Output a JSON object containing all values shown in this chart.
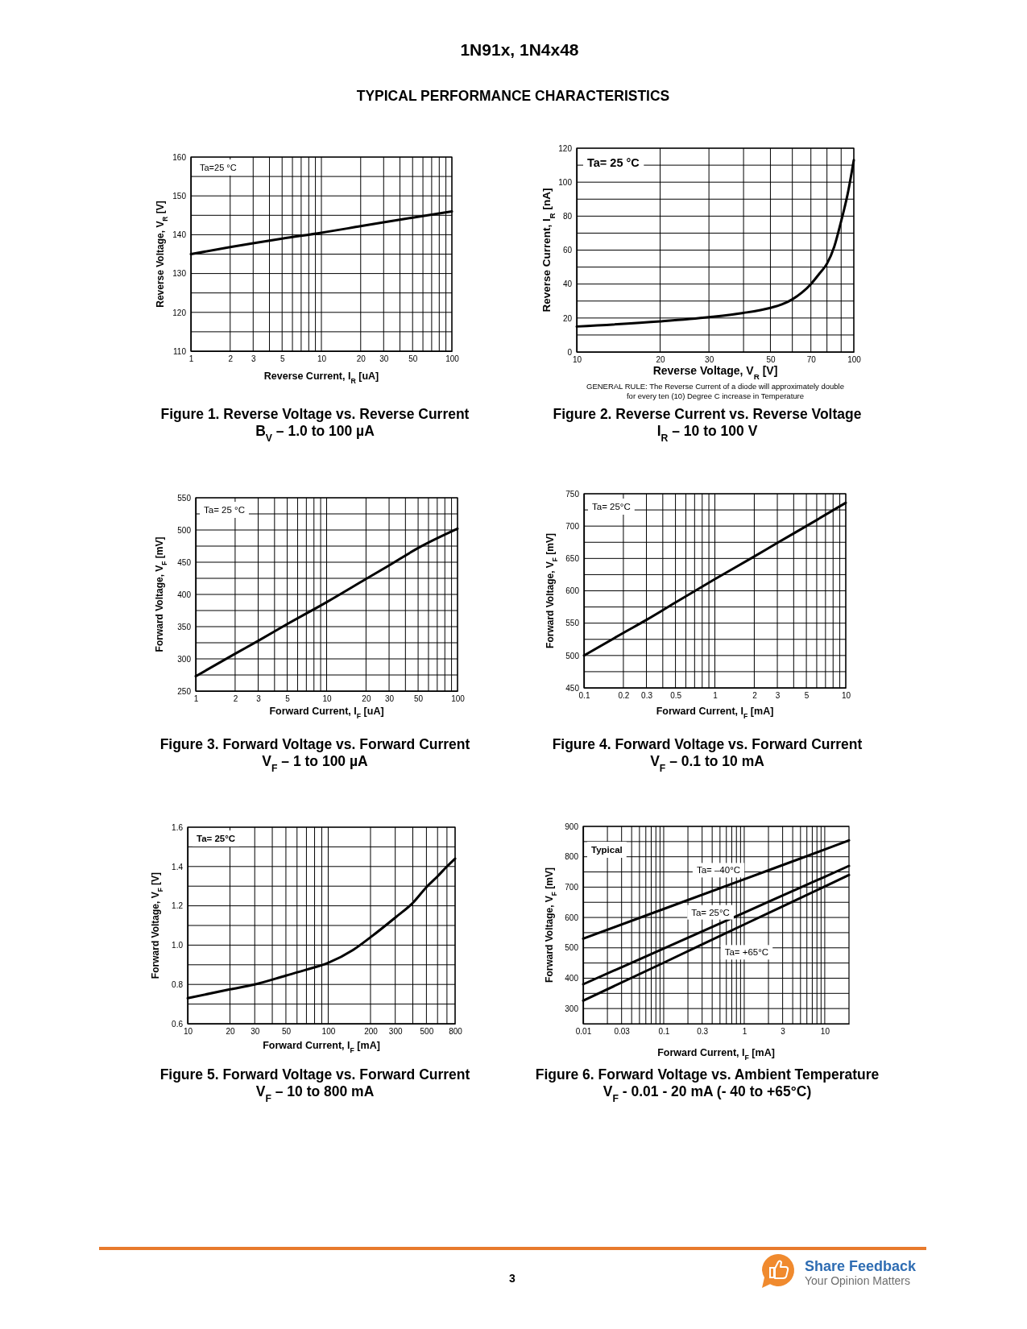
{
  "chart_data": [
    {
      "type": "other",
      "title": "1N91x, 1N4x48",
      "subtitle": "TYPICAL PERFORMANCE CHARACTERISTICS"
    },
    {
      "type": "line",
      "title": "Figure 1. Reverse Voltage vs. Reverse Current",
      "subtitle": "B$_{V}$ – 1.0 to 100 µA",
      "xlabel": "Reverse Current, I$_{R}$ [uA]",
      "ylabel": "Reverse Voltage, V$_{R}$ [V]",
      "annotations": [
        "Ta=25 °C"
      ],
      "x": [
        1,
        2,
        3,
        5,
        10,
        20,
        30,
        50,
        100
      ],
      "values": [
        135,
        136.8,
        137.8,
        139,
        140.5,
        142.2,
        143.2,
        144.4,
        146
      ],
      "color": "#000000",
      "log": "x",
      "xlim": [
        1,
        100
      ],
      "ylim": [
        110,
        160
      ],
      "xticks": [
        1,
        2,
        3,
        {
          "value": 4,
          "label": null
        },
        5,
        {
          "value": 6,
          "label": null
        },
        {
          "value": 7,
          "label": null
        },
        {
          "value": 8,
          "label": null
        },
        {
          "value": 9,
          "label": null
        },
        10,
        20,
        30,
        {
          "value": 40,
          "label": null
        },
        50,
        {
          "value": 60,
          "label": null
        },
        {
          "value": 70,
          "label": null
        },
        {
          "value": 80,
          "label": null
        },
        {
          "value": 90,
          "label": null
        },
        100
      ],
      "yticks": [
        110,
        {
          "value": 115,
          "label": null
        },
        120,
        {
          "value": 125,
          "label": null
        },
        130,
        {
          "value": 135,
          "label": null
        },
        140,
        {
          "value": 145,
          "label": null
        },
        150,
        {
          "value": 155,
          "label": null
        },
        160
      ],
      "grid": true
    },
    {
      "type": "line",
      "title": "Figure 2. Reverse Current vs. Reverse Voltage",
      "subtitle": "I$_{R}$ – 10 to 100 V",
      "xlabel": "Reverse Voltage, V$_{R}$ [V]",
      "ylabel": "Reverse Current, I$_{R}$ [nA]",
      "annotations": [
        "Ta= 25 °C",
        "GENERAL RULE: The Reverse Current of a diode will approximately double for every ten (10) Degree C increase in Temperature"
      ],
      "x": [
        10,
        20,
        30,
        40,
        50,
        55,
        60,
        65,
        70,
        75,
        80,
        85,
        90,
        95,
        100
      ],
      "values": [
        15,
        18,
        20.5,
        23,
        26,
        28,
        31,
        35,
        40,
        46,
        52,
        62,
        77,
        93,
        113
      ],
      "color": "#000000",
      "log": "x",
      "xlim": [
        10,
        100
      ],
      "ylim": [
        0,
        120
      ],
      "xticks": [
        10,
        20,
        30,
        {
          "value": 40,
          "label": null
        },
        50,
        {
          "value": 60,
          "label": null
        },
        70,
        {
          "value": 80,
          "label": null
        },
        {
          "value": 90,
          "label": null
        },
        100
      ],
      "yticks": [
        0,
        {
          "value": 10,
          "label": null
        },
        20,
        {
          "value": 30,
          "label": null
        },
        40,
        {
          "value": 50,
          "label": null
        },
        60,
        {
          "value": 70,
          "label": null
        },
        80,
        {
          "value": 90,
          "label": null
        },
        100,
        {
          "value": 110,
          "label": null
        },
        120
      ],
      "grid": true
    },
    {
      "type": "line",
      "title": "Figure 3. Forward Voltage vs. Forward Current",
      "subtitle": "V$_{F}$ – 1 to 100 µA",
      "xlabel": "Forward Current, I$_{F}$ [uA]",
      "ylabel": "Forward Voltage, V$_{F}$ [mV]",
      "annotations": [
        "Ta= 25 °C"
      ],
      "x": [
        1,
        2,
        3,
        5,
        10,
        20,
        30,
        50,
        100
      ],
      "values": [
        273,
        308,
        328,
        354,
        388,
        424,
        445,
        472,
        502
      ],
      "color": "#000000",
      "log": "x",
      "xlim": [
        1,
        100
      ],
      "ylim": [
        250,
        550
      ],
      "xticks": [
        1,
        2,
        3,
        {
          "value": 4,
          "label": null
        },
        5,
        {
          "value": 6,
          "label": null
        },
        {
          "value": 7,
          "label": null
        },
        {
          "value": 8,
          "label": null
        },
        {
          "value": 9,
          "label": null
        },
        10,
        20,
        30,
        {
          "value": 40,
          "label": null
        },
        50,
        {
          "value": 60,
          "label": null
        },
        {
          "value": 70,
          "label": null
        },
        {
          "value": 80,
          "label": null
        },
        {
          "value": 90,
          "label": null
        },
        100
      ],
      "yticks": [
        250,
        {
          "value": 275,
          "label": null
        },
        300,
        {
          "value": 325,
          "label": null
        },
        350,
        {
          "value": 375,
          "label": null
        },
        400,
        {
          "value": 425,
          "label": null
        },
        450,
        {
          "value": 475,
          "label": null
        },
        500,
        {
          "value": 525,
          "label": null
        },
        550
      ],
      "grid": true
    },
    {
      "type": "line",
      "title": "Figure 4. Forward Voltage vs. Forward Current",
      "subtitle": "V$_{F}$ – 0.1 to 10 mA",
      "xlabel": "Forward Current, I$_{F}$ [mA]",
      "ylabel": "Forward Voltage, V$_{F}$ [mV]",
      "annotations": [
        "Ta= 25°C"
      ],
      "x": [
        0.1,
        0.2,
        0.3,
        0.5,
        1,
        2,
        3,
        5,
        10
      ],
      "values": [
        500,
        535,
        555,
        582,
        618,
        653,
        674,
        700,
        736
      ],
      "color": "#000000",
      "log": "x",
      "xlim": [
        0.1,
        10
      ],
      "ylim": [
        450,
        750
      ],
      "xticks": [
        0.1,
        0.2,
        0.3,
        {
          "value": 0.4,
          "label": null
        },
        0.5,
        {
          "value": 0.6,
          "label": null
        },
        {
          "value": 0.7,
          "label": null
        },
        {
          "value": 0.8,
          "label": null
        },
        {
          "value": 0.9,
          "label": null
        },
        1,
        2,
        3,
        {
          "value": 4,
          "label": null
        },
        5,
        {
          "value": 6,
          "label": null
        },
        {
          "value": 7,
          "label": null
        },
        {
          "value": 8,
          "label": null
        },
        {
          "value": 9,
          "label": null
        },
        10
      ],
      "yticks": [
        450,
        {
          "value": 475,
          "label": null
        },
        500,
        {
          "value": 525,
          "label": null
        },
        550,
        {
          "value": 575,
          "label": null
        },
        600,
        {
          "value": 625,
          "label": null
        },
        650,
        {
          "value": 675,
          "label": null
        },
        700,
        {
          "value": 725,
          "label": null
        },
        750
      ],
      "grid": true
    },
    {
      "type": "line",
      "title": "Figure 5. Forward Voltage vs. Forward Current",
      "subtitle": "V$_{F}$ – 10 to 800 mA",
      "xlabel": "Forward Current, I$_{F}$ [mA]",
      "ylabel": "Forward Voltage, V$_{F}$ [V]",
      "annotations": [
        "Ta= 25°C"
      ],
      "x": [
        10,
        20,
        30,
        50,
        70,
        100,
        150,
        200,
        300,
        400,
        500,
        600,
        700,
        800
      ],
      "values": [
        0.73,
        0.775,
        0.8,
        0.845,
        0.875,
        0.91,
        0.975,
        1.04,
        1.14,
        1.215,
        1.295,
        1.35,
        1.4,
        1.44
      ],
      "color": "#000000",
      "log": "x",
      "xlim": [
        10,
        800
      ],
      "ylim": [
        0.6,
        1.6
      ],
      "xticks": [
        10,
        20,
        30,
        {
          "value": 40,
          "label": null
        },
        50,
        {
          "value": 60,
          "label": null
        },
        {
          "value": 70,
          "label": null
        },
        {
          "value": 80,
          "label": null
        },
        {
          "value": 90,
          "label": null
        },
        100,
        200,
        300,
        {
          "value": 400,
          "label": null
        },
        500,
        {
          "value": 600,
          "label": null
        },
        {
          "value": 700,
          "label": null
        },
        800
      ],
      "yticks": [
        0.6,
        {
          "value": 0.7,
          "label": null
        },
        0.8,
        {
          "value": 0.9,
          "label": null
        },
        {
          "value": 1,
          "label": "1.0"
        },
        {
          "value": 1.1,
          "label": null
        },
        1.2,
        {
          "value": 1.3,
          "label": null
        },
        1.4,
        {
          "value": 1.5,
          "label": null
        },
        1.6
      ],
      "grid": true
    },
    {
      "type": "line",
      "title": "Figure 6. Forward Voltage vs. Ambient Temperature",
      "subtitle": "V$_{F}$ - 0.01 - 20 mA (- 40 to +65°C)",
      "xlabel": "Forward Current, I$_{F}$ [mA]",
      "ylabel": "Forward Voltage, V$_{F}$ [mV]",
      "annotations": [
        "Typical"
      ],
      "x": [
        0.01,
        0.1,
        1,
        10,
        20
      ],
      "series": [
        {
          "name": "Ta= –40°C",
          "color": "#000000",
          "values": [
            530,
            628,
            726,
            824,
            854
          ]
        },
        {
          "name": "Ta= 25°C",
          "color": "#000000",
          "values": [
            380,
            498,
            616,
            734,
            770
          ]
        },
        {
          "name": "Ta= +65°C",
          "color": "#000000",
          "values": [
            326,
            451,
            577,
            702,
            740
          ]
        }
      ],
      "log": "x",
      "xlim": [
        0.01,
        20
      ],
      "ylim": [
        250,
        900
      ],
      "xticks": [
        0.01,
        {
          "value": 0.02,
          "label": null
        },
        0.03,
        {
          "value": 0.04,
          "label": null
        },
        {
          "value": 0.05,
          "label": null
        },
        {
          "value": 0.06,
          "label": null
        },
        {
          "value": 0.07,
          "label": null
        },
        {
          "value": 0.08,
          "label": null
        },
        {
          "value": 0.09,
          "label": null
        },
        0.1,
        {
          "value": 0.2,
          "label": null
        },
        0.3,
        {
          "value": 0.4,
          "label": null
        },
        {
          "value": 0.5,
          "label": null
        },
        {
          "value": 0.6,
          "label": null
        },
        {
          "value": 0.7,
          "label": null
        },
        {
          "value": 0.8,
          "label": null
        },
        {
          "value": 0.9,
          "label": null
        },
        1,
        {
          "value": 2,
          "label": null
        },
        3,
        {
          "value": 4,
          "label": null
        },
        {
          "value": 5,
          "label": null
        },
        {
          "value": 6,
          "label": null
        },
        {
          "value": 7,
          "label": null
        },
        {
          "value": 8,
          "label": null
        },
        {
          "value": 9,
          "label": null
        },
        10
      ],
      "yticks": [
        300,
        {
          "value": 350,
          "label": null
        },
        400,
        {
          "value": 450,
          "label": null
        },
        500,
        {
          "value": 550,
          "label": null
        },
        600,
        {
          "value": 650,
          "label": null
        },
        700,
        {
          "value": 750,
          "label": null
        },
        800,
        {
          "value": 850,
          "label": null
        },
        900
      ],
      "grid": true
    },
    {
      "type": "other",
      "annotations": [
        "3",
        "Share Feedback",
        "Your Opinion Matters"
      ]
    }
  ]
}
